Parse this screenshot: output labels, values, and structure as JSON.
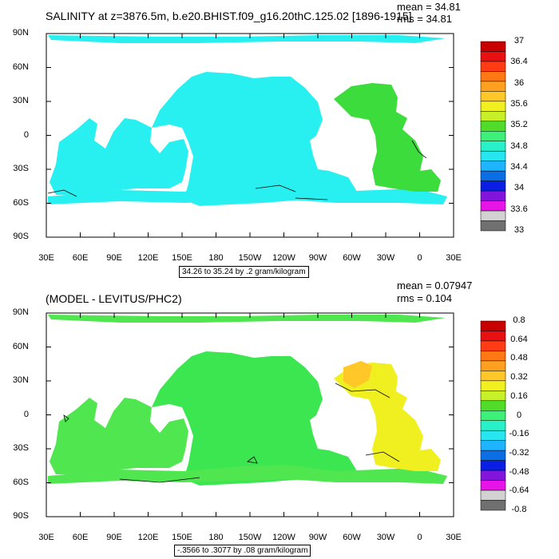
{
  "chart_data": [
    {
      "type": "heatmap",
      "title": "SALINITY at z=3876.5m, b.e20.BHIST.f09_g16.20thC.125.02 [1896-1915]",
      "mean_label": "mean = 34.81",
      "rms_label": "rms = 34.81",
      "x_ticks": [
        "30E",
        "60E",
        "90E",
        "120E",
        "150E",
        "180",
        "150W",
        "120W",
        "90W",
        "60W",
        "30W",
        "0",
        "30E"
      ],
      "y_ticks": [
        "90N",
        "60N",
        "30N",
        "0",
        "30S",
        "60S",
        "90S"
      ],
      "xlim": [
        30,
        390
      ],
      "ylim": [
        -90,
        90
      ],
      "contour_note": "34.26 to 35.24 by .2 gram/kilogram",
      "colorbar_labels": [
        "37",
        "36.4",
        "36",
        "35.6",
        "35.2",
        "34.8",
        "34.4",
        "34",
        "33.6",
        "33"
      ],
      "colorbar_colors": [
        "#c80000",
        "#e81010",
        "#ff3c14",
        "#ff7814",
        "#ffa020",
        "#ffc828",
        "#f0f020",
        "#c8f028",
        "#50dc28",
        "#3cf078",
        "#28f0c8",
        "#28e6f0",
        "#1eb4ff",
        "#0a6ee6",
        "#0a1ee6",
        "#8214dc",
        "#e614e6",
        "#d2d2d2",
        "#707070"
      ],
      "fields": [
        {
          "region": "Indian Ocean",
          "color": "#28f0f0"
        },
        {
          "region": "Pacific Ocean",
          "color": "#28f0f0"
        },
        {
          "region": "Atlantic Ocean",
          "color": "#3cdc3c"
        },
        {
          "region": "Arctic",
          "color": "#28f0f0"
        }
      ]
    },
    {
      "type": "heatmap",
      "title": "(MODEL - LEVITUS/PHC2)",
      "mean_label": "mean = 0.07947",
      "rms_label": "rms = 0.104",
      "x_ticks": [
        "30E",
        "60E",
        "90E",
        "120E",
        "150E",
        "180",
        "150W",
        "120W",
        "90W",
        "60W",
        "30W",
        "0",
        "30E"
      ],
      "y_ticks": [
        "90N",
        "60N",
        "30N",
        "0",
        "30S",
        "60S",
        "90S"
      ],
      "xlim": [
        30,
        390
      ],
      "ylim": [
        -90,
        90
      ],
      "contour_note": "-.3566 to .3077 by .08 gram/kilogram",
      "colorbar_labels": [
        "0.8",
        "0.64",
        "0.48",
        "0.32",
        "0.16",
        "0",
        "-0.16",
        "-0.32",
        "-0.48",
        "-0.64",
        "-0.8"
      ],
      "colorbar_colors": [
        "#c80000",
        "#e81010",
        "#ff3c14",
        "#ff7814",
        "#ffa020",
        "#ffc828",
        "#f0f020",
        "#c8f028",
        "#50dc28",
        "#3cf078",
        "#28f0c8",
        "#28e6f0",
        "#1eb4ff",
        "#0a6ee6",
        "#0a1ee6",
        "#8214dc",
        "#e614e6",
        "#d2d2d2",
        "#707070"
      ],
      "fields": [
        {
          "region": "Indian Ocean",
          "color": "#50e650"
        },
        {
          "region": "Pacific Ocean",
          "color": "#3ce650"
        },
        {
          "region": "Atlantic Ocean",
          "color": "#f0f020"
        },
        {
          "region": "Arctic",
          "color": "#50e650"
        }
      ]
    }
  ]
}
